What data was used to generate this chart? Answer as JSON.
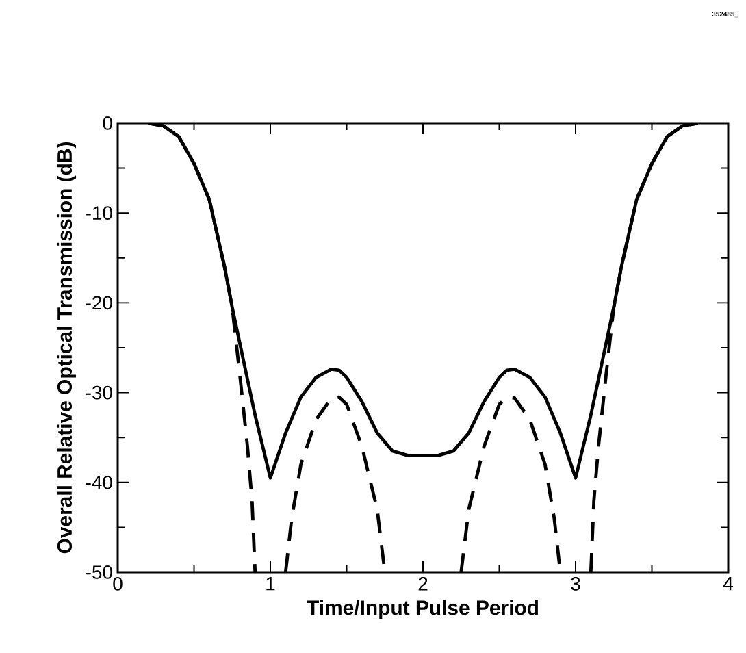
{
  "chart_data": {
    "type": "line",
    "xlabel": "Time/Input Pulse Period",
    "ylabel": "Overall Relative Optical Transmission (dB)",
    "annotations": [
      "352485_"
    ],
    "xlim": [
      0,
      4
    ],
    "ylim": [
      -50,
      0
    ],
    "xticks": [
      0,
      1,
      2,
      3,
      4
    ],
    "yticks": [
      -50,
      -40,
      -30,
      -20,
      -10,
      0
    ],
    "grid": false,
    "marker": "none",
    "series": [
      {
        "color": "#000000",
        "line_style": "solid",
        "x": [
          0.2,
          0.3,
          0.4,
          0.5,
          0.6,
          0.7,
          0.75,
          0.8,
          0.85,
          0.9,
          0.95,
          1.0,
          1.05,
          1.1,
          1.2,
          1.3,
          1.4,
          1.45,
          1.5,
          1.6,
          1.7,
          1.8,
          1.9,
          2.0,
          2.1,
          2.2,
          2.3,
          2.4,
          2.5,
          2.55,
          2.6,
          2.7,
          2.8,
          2.9,
          2.95,
          3.0,
          3.05,
          3.1,
          3.15,
          3.2,
          3.25,
          3.3,
          3.4,
          3.5,
          3.6,
          3.7,
          3.8
        ],
        "values": [
          0,
          -0.3,
          -1.5,
          -4.5,
          -8.5,
          -16,
          -20.5,
          -24.5,
          -28.5,
          -32.5,
          -36,
          -39.5,
          -37,
          -34.5,
          -30.5,
          -28.3,
          -27.4,
          -27.5,
          -28.3,
          -31,
          -34.5,
          -36.5,
          -37,
          -37,
          -37,
          -36.5,
          -34.5,
          -31,
          -28.3,
          -27.5,
          -27.4,
          -28.3,
          -30.5,
          -34.5,
          -37,
          -39.5,
          -36,
          -32.5,
          -28.5,
          -24.5,
          -20.5,
          -16,
          -8.5,
          -4.5,
          -1.5,
          -0.3,
          0
        ]
      },
      {
        "color": "#000000",
        "line_style": "dashed",
        "x": [
          0.2,
          0.3,
          0.4,
          0.5,
          0.6,
          0.7,
          0.75,
          0.8,
          0.85,
          0.88,
          0.9,
          1.0,
          1.1,
          1.14,
          1.2,
          1.3,
          1.4,
          1.45,
          1.5,
          1.6,
          1.7,
          1.75,
          2.0,
          2.25,
          2.3,
          2.4,
          2.5,
          2.55,
          2.6,
          2.7,
          2.8,
          2.86,
          2.9,
          3.0,
          3.1,
          3.12,
          3.15,
          3.2,
          3.25,
          3.3,
          3.4,
          3.5,
          3.6,
          3.7,
          3.8
        ],
        "values": [
          0,
          -0.3,
          -1.5,
          -4.5,
          -8.5,
          -16,
          -20.5,
          -28,
          -36,
          -42,
          -50,
          null,
          -50,
          -44,
          -38,
          -33,
          -30.6,
          -30.5,
          -31.3,
          -36,
          -43,
          -50,
          null,
          -50,
          -43,
          -36,
          -31.3,
          -30.5,
          -30.6,
          -33,
          -38,
          -44,
          -50,
          null,
          -50,
          -42,
          -36,
          -28,
          -20.5,
          -16,
          -8.5,
          -4.5,
          -1.5,
          -0.3,
          0
        ]
      }
    ]
  }
}
